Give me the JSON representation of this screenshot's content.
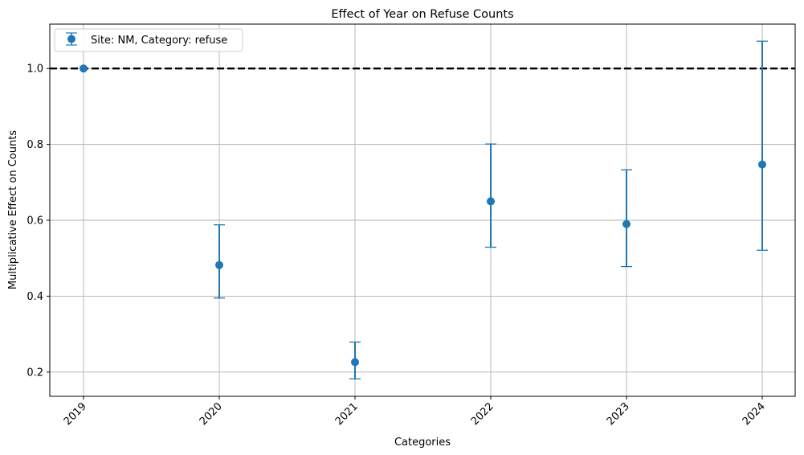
{
  "chart_data": {
    "type": "errorbar",
    "title": "Effect of Year on Refuse Counts",
    "xlabel": "Categories",
    "ylabel": "Multiplicative Effect on Counts",
    "categories": [
      "2019",
      "2020",
      "2021",
      "2022",
      "2023",
      "2024"
    ],
    "series": [
      {
        "name": "Site: NM, Category: refuse",
        "values": [
          1.0,
          0.482,
          0.226,
          0.65,
          0.59,
          0.747
        ],
        "lower": [
          1.0,
          0.395,
          0.182,
          0.529,
          0.478,
          0.521
        ],
        "upper": [
          1.0,
          0.588,
          0.279,
          0.801,
          0.733,
          1.072
        ],
        "color": "#1f77b4"
      }
    ],
    "reference_line": {
      "y": 1.0,
      "style": "dashed",
      "color": "#000000"
    },
    "yticks": [
      0.2,
      0.4,
      0.6,
      0.8,
      1.0
    ],
    "ytick_labels": [
      "0.2",
      "0.4",
      "0.6",
      "0.8",
      "1.0"
    ],
    "ylim": [
      0.136,
      1.117
    ],
    "grid": true,
    "legend_position": "top-left",
    "xtick_rotation": 45
  }
}
